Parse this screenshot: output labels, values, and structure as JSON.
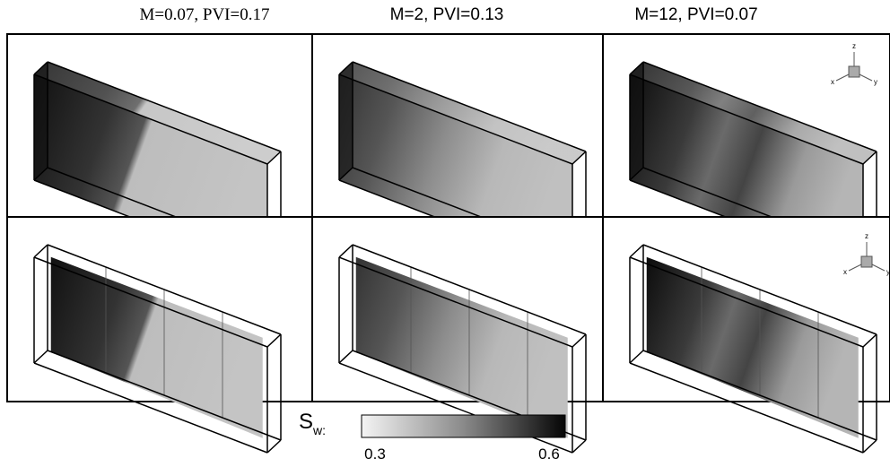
{
  "columns": [
    {
      "title": "M=0.07, PVI=0.17"
    },
    {
      "title": "M=2, PVI=0.13"
    },
    {
      "title": "M=12, PVI=0.07"
    }
  ],
  "axis_triads": [
    {
      "z": "z",
      "x": "x",
      "y": "y"
    },
    {
      "z": "z",
      "x": "x",
      "y": "y"
    }
  ],
  "colorbar": {
    "label": "S",
    "label_sub": "w:",
    "ticks": [
      0.3,
      0.6
    ]
  }
}
